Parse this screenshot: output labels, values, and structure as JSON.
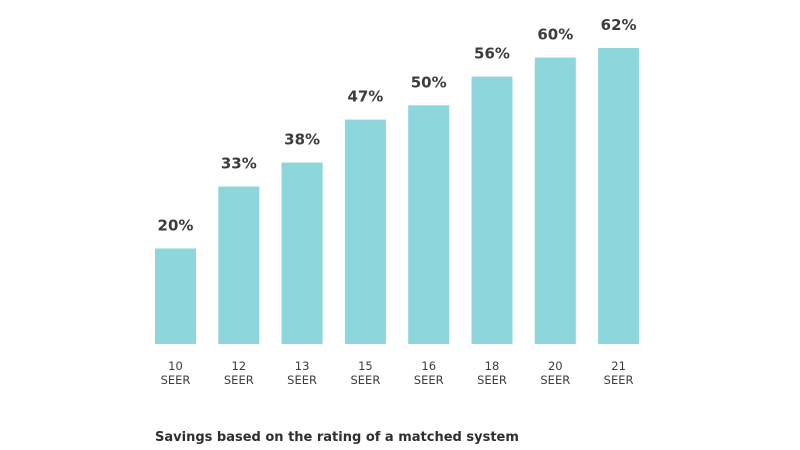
{
  "chart_data": {
    "type": "bar",
    "categories": [
      [
        "10",
        "SEER"
      ],
      [
        "12",
        "SEER"
      ],
      [
        "13",
        "SEER"
      ],
      [
        "15",
        "SEER"
      ],
      [
        "16",
        "SEER"
      ],
      [
        "18",
        "SEER"
      ],
      [
        "20",
        "SEER"
      ],
      [
        "21",
        "SEER"
      ]
    ],
    "values": [
      20,
      33,
      38,
      47,
      50,
      56,
      60,
      62
    ],
    "value_labels": [
      "20%",
      "33%",
      "38%",
      "47%",
      "50%",
      "56%",
      "60%",
      "62%"
    ],
    "ylim": [
      0,
      62
    ],
    "grid": false,
    "bar_color": "#8cd6dc",
    "caption": "Savings based on the rating of a matched system"
  }
}
